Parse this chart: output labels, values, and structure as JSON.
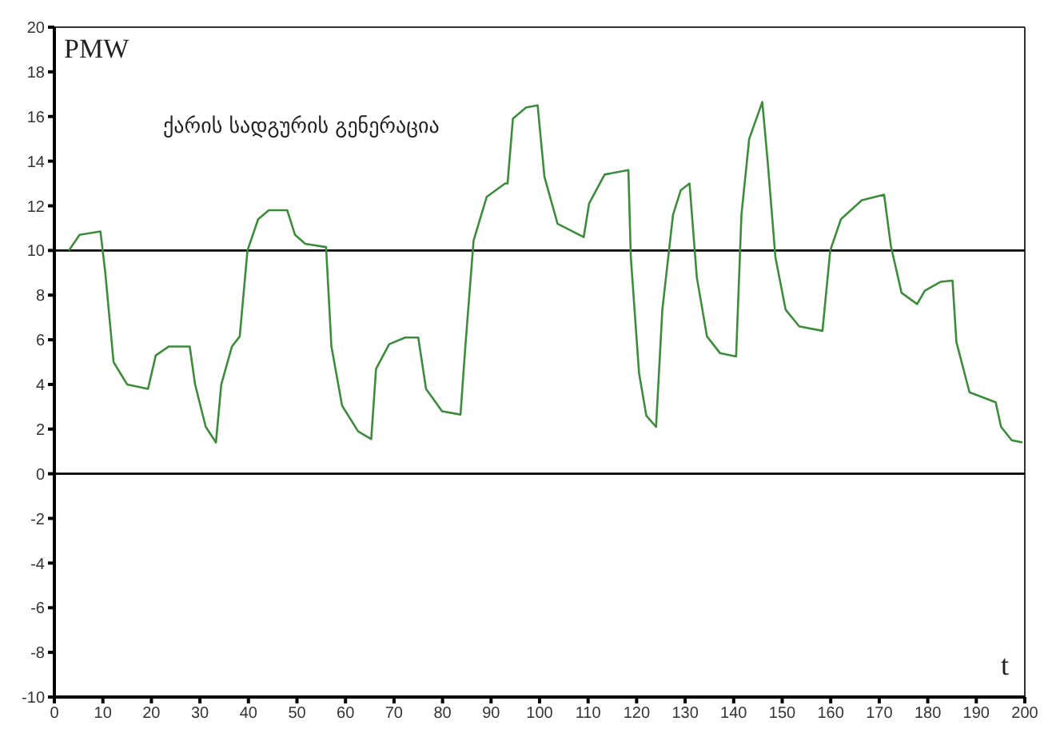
{
  "chart_data": {
    "type": "line",
    "xlabel": "t",
    "ylabel": "PMW",
    "annotations": [
      "ქარის სადგურის გენერაცია"
    ],
    "x": [
      3,
      5.2,
      9.5,
      10.5,
      12.2,
      15,
      19.3,
      20.9,
      23.6,
      27.9,
      29,
      31.2,
      33.3,
      34.4,
      36.6,
      38.2,
      39.8,
      42,
      44.2,
      48,
      49.6,
      51.7,
      56,
      57.1,
      59.3,
      62.6,
      65.3,
      66.3,
      69,
      72.3,
      75,
      76.6,
      79.9,
      83.7,
      84.7,
      86.4,
      89.1,
      92.9,
      93.4,
      94.5,
      97.2,
      99.6,
      101,
      103.7,
      109.1,
      110.2,
      113.4,
      118.3,
      118.8,
      120.5,
      122,
      124,
      125.3,
      127.5,
      129.1,
      130.9,
      132.4,
      134.5,
      137.2,
      140.5,
      141.6,
      143.2,
      145.9,
      147,
      148.6,
      150.7,
      153.5,
      158.3,
      159.9,
      162.1,
      166.4,
      171,
      172.4,
      174.6,
      177.8,
      179.4,
      182.7,
      185.1,
      185.9,
      188.6,
      194,
      195.1,
      197.3,
      199.5
    ],
    "series": [
      {
        "color": "#3c8c3c",
        "values": [
          10,
          10.7,
          10.85,
          9,
          5,
          4,
          3.8,
          5.3,
          5.7,
          5.7,
          4,
          2.1,
          1.4,
          4,
          5.7,
          6.15,
          10,
          11.4,
          11.8,
          11.8,
          10.7,
          10.3,
          10.15,
          5.7,
          3.05,
          1.9,
          1.55,
          4.7,
          5.8,
          6.1,
          6.1,
          3.8,
          2.8,
          2.65,
          5.7,
          10.45,
          12.4,
          13,
          13,
          15.9,
          16.4,
          16.5,
          13.3,
          11.2,
          10.6,
          12.1,
          13.4,
          13.6,
          9.7,
          4.5,
          2.6,
          2.1,
          7.35,
          11.6,
          12.7,
          13,
          8.8,
          6.15,
          5.4,
          5.25,
          11.6,
          15,
          16.65,
          14,
          9.7,
          7.35,
          6.6,
          6.4,
          10,
          11.4,
          12.25,
          12.5,
          10.2,
          8.1,
          7.6,
          8.2,
          8.6,
          8.65,
          5.9,
          3.65,
          3.2,
          2.1,
          1.5,
          1.4
        ]
      }
    ],
    "xlim": [
      0,
      200
    ],
    "xticks": [
      0,
      10,
      20,
      30,
      40,
      50,
      60,
      70,
      80,
      90,
      100,
      110,
      120,
      130,
      140,
      150,
      160,
      170,
      180,
      190,
      200
    ],
    "ylim": [
      -10,
      20
    ],
    "yticks": [
      -10,
      -8,
      -6,
      -4,
      -2,
      0,
      2,
      4,
      6,
      8,
      10,
      12,
      14,
      16,
      18,
      20
    ],
    "ref_lines": [
      {
        "axis": "y",
        "value": 10,
        "color": "#000000"
      },
      {
        "axis": "y",
        "value": 0,
        "color": "#000000"
      }
    ],
    "grid": false,
    "legend": false,
    "marker": "none",
    "line_style": "solid"
  }
}
